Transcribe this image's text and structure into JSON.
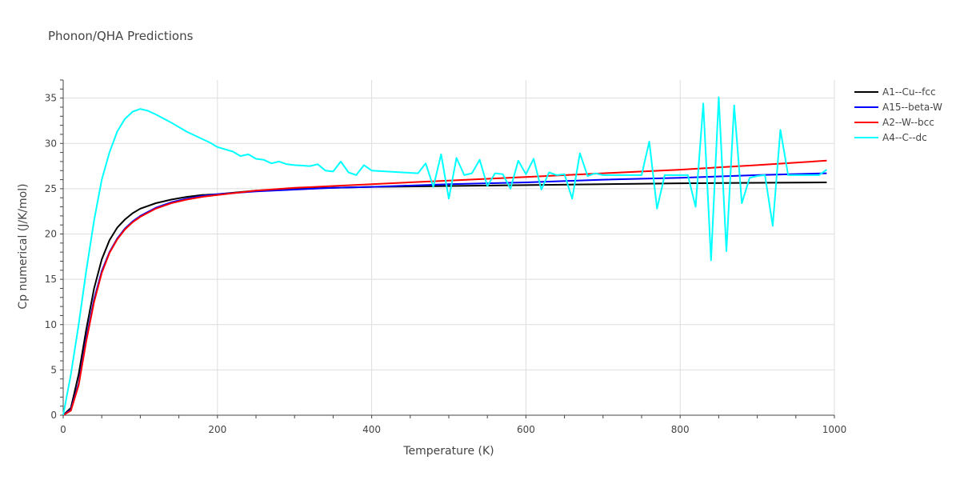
{
  "chart_data": {
    "type": "line",
    "title": "Phonon/QHA Predictions",
    "xlabel": "Temperature (K)",
    "ylabel": "Cp numerical (J/K/mol)",
    "xlim": [
      0,
      1000
    ],
    "ylim": [
      0,
      37
    ],
    "xticks": [
      0,
      200,
      400,
      600,
      800,
      1000
    ],
    "yticks": [
      0,
      5,
      10,
      15,
      20,
      25,
      30,
      35
    ],
    "grid": true,
    "legend_position": "top-right",
    "series": [
      {
        "name": "A1--Cu--fcc",
        "color": "#000000",
        "x": [
          0,
          10,
          20,
          30,
          40,
          50,
          60,
          70,
          80,
          90,
          100,
          120,
          140,
          160,
          180,
          200,
          250,
          300,
          350,
          400,
          500,
          600,
          700,
          800,
          900,
          990
        ],
        "y": [
          0,
          0.8,
          4.5,
          9.5,
          14.0,
          17.2,
          19.3,
          20.7,
          21.6,
          22.3,
          22.8,
          23.4,
          23.8,
          24.1,
          24.3,
          24.4,
          24.8,
          25.0,
          25.1,
          25.2,
          25.3,
          25.4,
          25.5,
          25.6,
          25.65,
          25.7
        ]
      },
      {
        "name": "A15--beta-W",
        "color": "#0000ff",
        "x": [
          0,
          10,
          20,
          30,
          40,
          50,
          60,
          70,
          80,
          90,
          100,
          120,
          140,
          160,
          180,
          200,
          250,
          300,
          350,
          400,
          500,
          600,
          700,
          800,
          900,
          990
        ],
        "y": [
          0,
          0.6,
          3.5,
          8.5,
          12.8,
          15.9,
          18.0,
          19.5,
          20.6,
          21.4,
          22.0,
          22.9,
          23.5,
          23.9,
          24.2,
          24.4,
          24.7,
          24.9,
          25.1,
          25.2,
          25.5,
          25.7,
          26.0,
          26.2,
          26.5,
          26.7
        ]
      },
      {
        "name": "A2--W--bcc",
        "color": "#ff0000",
        "x": [
          0,
          10,
          20,
          30,
          40,
          50,
          60,
          70,
          80,
          90,
          100,
          120,
          140,
          160,
          180,
          200,
          250,
          300,
          350,
          400,
          500,
          600,
          700,
          800,
          900,
          990
        ],
        "y": [
          0,
          0.5,
          3.3,
          8.2,
          12.5,
          15.7,
          17.9,
          19.4,
          20.5,
          21.3,
          21.9,
          22.8,
          23.4,
          23.8,
          24.1,
          24.3,
          24.8,
          25.1,
          25.3,
          25.5,
          25.9,
          26.3,
          26.7,
          27.1,
          27.6,
          28.1
        ]
      },
      {
        "name": "A4--C--dc",
        "color": "#00ffff",
        "x": [
          0,
          10,
          20,
          30,
          40,
          50,
          60,
          70,
          80,
          90,
          100,
          110,
          120,
          140,
          160,
          180,
          190,
          200,
          220,
          230,
          240,
          250,
          260,
          270,
          280,
          290,
          300,
          320,
          330,
          340,
          350,
          360,
          370,
          380,
          390,
          400,
          420,
          440,
          460,
          470,
          480,
          490,
          500,
          510,
          520,
          530,
          540,
          550,
          560,
          570,
          580,
          590,
          600,
          610,
          620,
          630,
          640,
          650,
          660,
          670,
          680,
          690,
          700,
          720,
          740,
          750,
          760,
          770,
          780,
          790,
          800,
          810,
          820,
          830,
          840,
          850,
          860,
          870,
          880,
          890,
          900,
          910,
          920,
          930,
          940,
          950,
          960,
          980,
          990
        ],
        "y": [
          0,
          4.5,
          10.0,
          16.0,
          21.5,
          26.0,
          29.0,
          31.3,
          32.7,
          33.5,
          33.8,
          33.6,
          33.2,
          32.3,
          31.3,
          30.5,
          30.1,
          29.6,
          29.1,
          28.6,
          28.8,
          28.3,
          28.2,
          27.8,
          28.0,
          27.7,
          27.6,
          27.5,
          27.7,
          27.0,
          26.9,
          28.0,
          26.8,
          26.5,
          27.6,
          27.0,
          26.9,
          26.8,
          26.7,
          27.8,
          25.2,
          28.8,
          23.9,
          28.4,
          26.5,
          26.7,
          28.2,
          25.3,
          26.7,
          26.6,
          25.0,
          28.1,
          26.6,
          28.3,
          24.9,
          26.8,
          26.5,
          26.6,
          23.9,
          28.9,
          26.4,
          26.7,
          26.5,
          26.5,
          26.5,
          26.5,
          30.2,
          22.8,
          26.5,
          26.5,
          26.5,
          26.5,
          23.0,
          34.4,
          17.1,
          35.1,
          18.1,
          34.2,
          23.4,
          26.2,
          26.4,
          26.5,
          20.9,
          31.5,
          26.5,
          26.5,
          26.5,
          26.5,
          27.1
        ]
      }
    ]
  }
}
